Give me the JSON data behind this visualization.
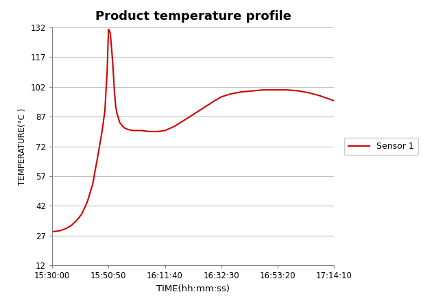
{
  "title": "Product temperature profile",
  "xlabel": "TIME(hh:mm:ss)",
  "ylabel": "TEMPERATURE(°C )",
  "line_color": "#CC0000",
  "legend_label": "Sensor 1",
  "ylim": [
    12,
    132
  ],
  "yticks": [
    12,
    27,
    42,
    57,
    72,
    87,
    102,
    117,
    132
  ],
  "xtick_labels": [
    "15:30:00",
    "15:50:50",
    "16:11:40",
    "16:32:30",
    "16:53:20",
    "17:14:10"
  ],
  "background_color": "#ffffff",
  "time_points": [
    "15:30:00",
    "15:31:30",
    "15:33:00",
    "15:35:00",
    "15:37:00",
    "15:39:00",
    "15:41:00",
    "15:43:00",
    "15:45:00",
    "15:47:00",
    "15:48:30",
    "15:49:30",
    "15:50:20",
    "15:50:50",
    "15:51:10",
    "15:51:30",
    "15:52:00",
    "15:52:30",
    "15:53:00",
    "15:53:30",
    "15:54:00",
    "15:55:00",
    "15:56:30",
    "15:58:00",
    "16:00:00",
    "16:03:00",
    "16:06:00",
    "16:09:00",
    "16:11:40",
    "16:15:00",
    "16:18:00",
    "16:22:00",
    "16:26:00",
    "16:30:00",
    "16:32:30",
    "16:36:00",
    "16:40:00",
    "16:44:00",
    "16:48:00",
    "16:51:00",
    "16:53:20",
    "16:57:00",
    "17:01:00",
    "17:05:00",
    "17:09:00",
    "17:14:10"
  ],
  "temperatures": [
    29.0,
    29.2,
    29.5,
    30.5,
    32.0,
    34.5,
    38.0,
    44.0,
    53.0,
    68.0,
    80.0,
    90.0,
    110.0,
    131.0,
    130.5,
    129.0,
    121.0,
    112.0,
    100.0,
    92.0,
    88.5,
    84.0,
    81.5,
    80.5,
    80.0,
    80.0,
    79.5,
    79.5,
    80.0,
    82.0,
    84.5,
    88.0,
    91.5,
    95.0,
    97.0,
    98.5,
    99.5,
    100.0,
    100.5,
    100.5,
    100.5,
    100.5,
    100.0,
    99.0,
    97.5,
    95.0
  ]
}
